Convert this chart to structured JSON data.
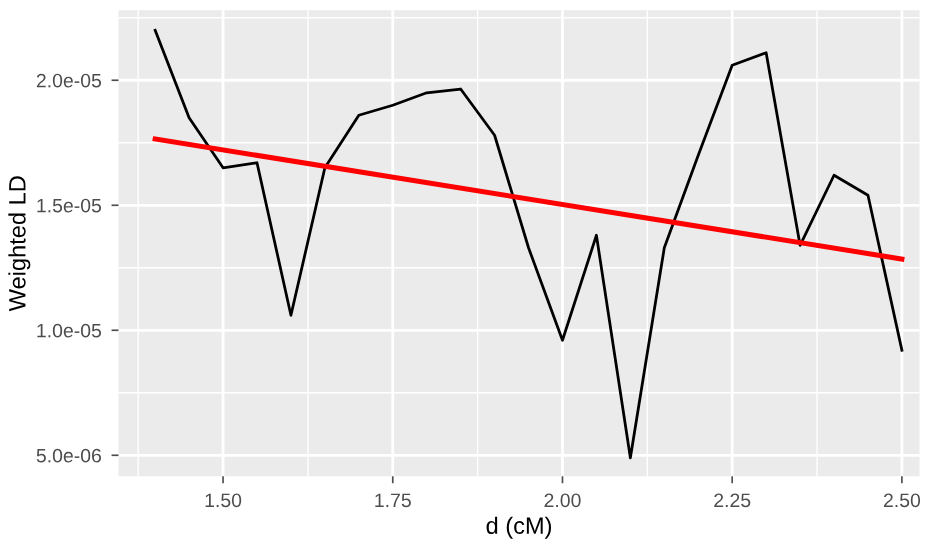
{
  "chart_data": {
    "type": "line",
    "xlabel": "d (cM)",
    "ylabel": "Weighted LD",
    "xlim": [
      1.346,
      2.526
    ],
    "ylim": [
      4.16e-06,
      2.28e-05
    ],
    "xticks": [
      {
        "value": 1.5,
        "label": "1.50"
      },
      {
        "value": 1.75,
        "label": "1.75"
      },
      {
        "value": 2.0,
        "label": "2.00"
      },
      {
        "value": 2.25,
        "label": "2.25"
      },
      {
        "value": 2.5,
        "label": "2.50"
      }
    ],
    "yticks": [
      {
        "value": 5e-06,
        "label": "5.0e-06"
      },
      {
        "value": 1e-05,
        "label": "1.0e-05"
      },
      {
        "value": 1.5e-05,
        "label": "1.5e-05"
      },
      {
        "value": 2e-05,
        "label": "2.0e-05"
      }
    ],
    "grid": true,
    "legend": false,
    "series": [
      {
        "color": "#000000",
        "x": [
          1.4,
          1.45,
          1.5,
          1.55,
          1.6,
          1.65,
          1.7,
          1.75,
          1.8,
          1.85,
          1.9,
          1.95,
          2.0,
          2.05,
          2.1,
          2.15,
          2.2,
          2.25,
          2.3,
          2.35,
          2.4,
          2.45,
          2.5
        ],
        "values": [
          2.2e-05,
          1.85e-05,
          1.65e-05,
          1.67e-05,
          1.06e-05,
          1.65e-05,
          1.86e-05,
          1.9e-05,
          1.95e-05,
          1.965e-05,
          1.78e-05,
          1.33e-05,
          9.6e-06,
          1.38e-05,
          4.9e-06,
          1.33e-05,
          1.7e-05,
          2.06e-05,
          2.11e-05,
          1.34e-05,
          1.62e-05,
          1.54e-05,
          9.2e-06
        ]
      },
      {
        "color": "#ff0000",
        "x": [
          1.4,
          2.5
        ],
        "values": [
          1.765e-05,
          1.285e-05
        ]
      }
    ]
  }
}
